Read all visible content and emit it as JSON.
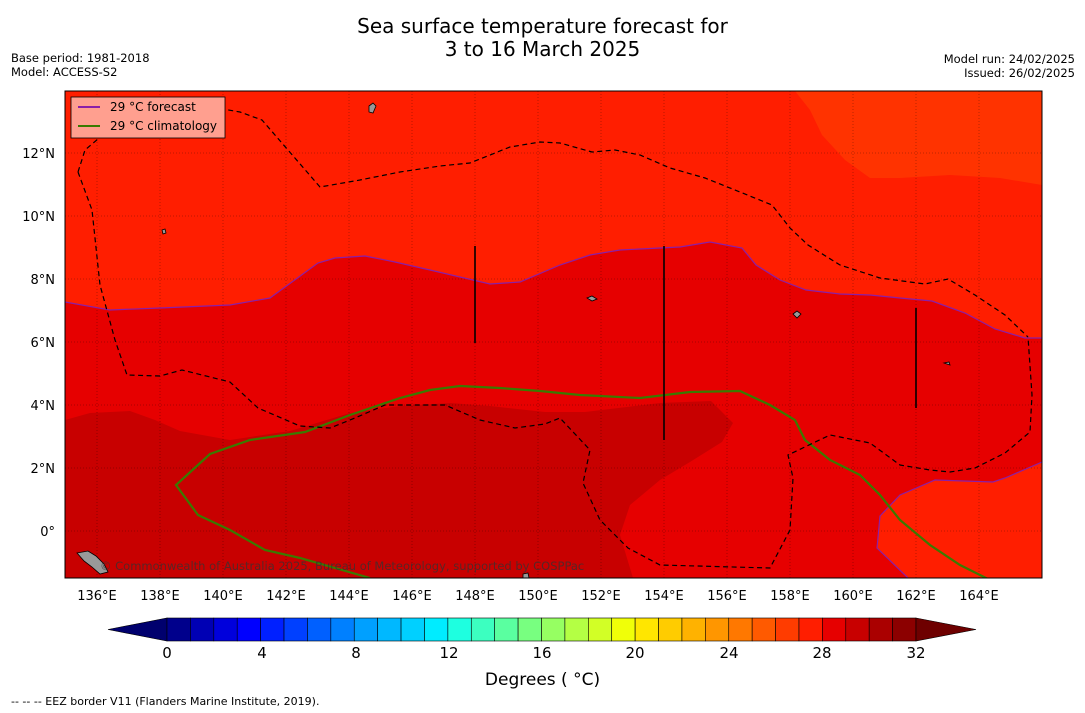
{
  "title_line1": "Sea surface temperature forecast for",
  "title_line2": "3 to 16 March 2025",
  "base_period": "Base period: 1981-2018",
  "model": "Model: ACCESS-S2",
  "model_run": "Model run: 24/02/2025",
  "issued": "Issued: 26/02/2025",
  "legend": {
    "forecast_label": "29 °C  forecast",
    "climatology_label": "29 °C  climatology",
    "forecast_color": "#8a1fa8",
    "climatology_color": "#3a7a00"
  },
  "copyright": "© Commonwealth of Australia 2025, Bureau of Meteorology, supported by COSPPac",
  "colorbar": {
    "ticks": [
      "0",
      "4",
      "8",
      "12",
      "16",
      "20",
      "24",
      "28",
      "32"
    ],
    "units": "Degrees ( °C)",
    "colors": [
      "#00008c",
      "#0000b4",
      "#0000dc",
      "#0000ff",
      "#0020ff",
      "#0040ff",
      "#0060ff",
      "#0080ff",
      "#00a0ff",
      "#00b8ff",
      "#00d0ff",
      "#00ecff",
      "#1effe0",
      "#3cffc0",
      "#5affa0",
      "#78ff80",
      "#96ff62",
      "#b4ff44",
      "#d2ff26",
      "#f0ff08",
      "#ffe600",
      "#ffcc00",
      "#ffb200",
      "#ff9600",
      "#ff7800",
      "#ff5a00",
      "#ff3c00",
      "#ff1e00",
      "#e60000",
      "#c80000",
      "#aa0000",
      "#8c0000"
    ]
  },
  "lat_labels": [
    "12°N",
    "10°N",
    "8°N",
    "6°N",
    "4°N",
    "2°N",
    "0°"
  ],
  "lon_labels": [
    "136°E",
    "138°E",
    "140°E",
    "142°E",
    "144°E",
    "146°E",
    "148°E",
    "150°E",
    "152°E",
    "154°E",
    "156°E",
    "158°E",
    "160°E",
    "162°E",
    "164°E"
  ],
  "footnote": "--  --  -- EEZ border V11 (Flanders Marine Institute, 2019).",
  "field_colors": {
    "t27_28": "#ff3300",
    "t28_29": "#ff1e00",
    "t29_30": "#e60000",
    "t30_31": "#c80000"
  }
}
